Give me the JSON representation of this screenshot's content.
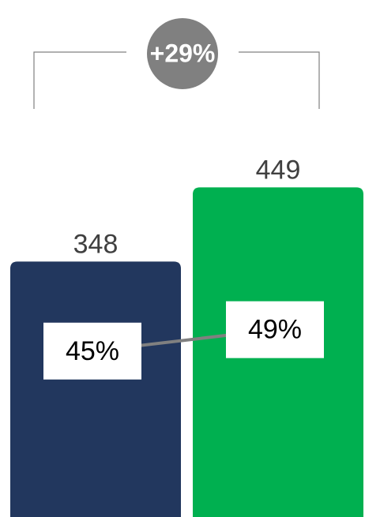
{
  "chart_data": {
    "type": "bar",
    "categories": [
      null,
      null
    ],
    "series": [
      {
        "color": [
          "#22375e",
          "#00b050"
        ],
        "values": [
          348,
          449
        ]
      },
      {
        "color": "#808080",
        "axis": "y2",
        "values": [
          45,
          49
        ],
        "value_labels": [
          "45%",
          "49%"
        ]
      }
    ],
    "ylim": [
      0,
      700
    ],
    "y2lim": [
      14,
      110
    ],
    "annotation": "+29%"
  }
}
